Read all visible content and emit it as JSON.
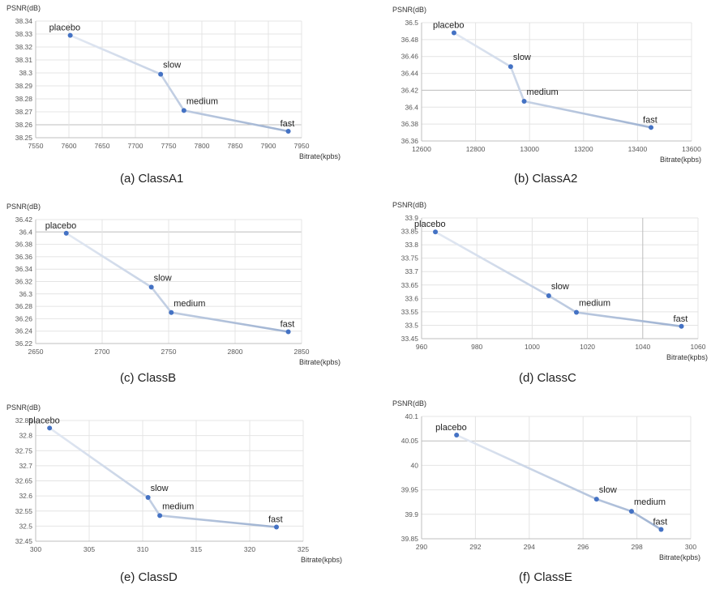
{
  "chart_data": [
    {
      "type": "line",
      "caption": "(a)  ClassA1",
      "ylabel": "PSNR(dB)",
      "xlabel": "Bitrate(kpbs)",
      "xlim": [
        7550,
        7950
      ],
      "xticks": [
        "7550",
        "7600",
        "7650",
        "7700",
        "7750",
        "7800",
        "7850",
        "7900",
        "7950"
      ],
      "ylim": [
        38.25,
        38.34
      ],
      "yticks": [
        "38.25",
        "38.26",
        "38.27",
        "38.28",
        "38.29",
        "38.3",
        "38.31",
        "38.32",
        "38.33",
        "38.34"
      ],
      "ydark": 38.26,
      "xdark": null,
      "points": [
        {
          "label": "placebo",
          "x": 7602,
          "y": 38.329
        },
        {
          "label": "slow",
          "x": 7738,
          "y": 38.299
        },
        {
          "label": "medium",
          "x": 7773,
          "y": 38.271
        },
        {
          "label": "fast",
          "x": 7930,
          "y": 38.255
        }
      ]
    },
    {
      "type": "line",
      "caption": "(b)  ClassA2",
      "ylabel": "PSNR(dB)",
      "xlabel": "Bitrate(kpbs)",
      "xlim": [
        12600,
        13600
      ],
      "xticks": [
        "12600",
        "12800",
        "13000",
        "13200",
        "13400",
        "13600"
      ],
      "ylim": [
        36.36,
        36.5
      ],
      "yticks": [
        "36.36",
        "36.38",
        "36.4",
        "36.42",
        "36.44",
        "36.46",
        "36.48",
        "36.5"
      ],
      "ydark": 36.42,
      "xdark": null,
      "points": [
        {
          "label": "placebo",
          "x": 12720,
          "y": 36.488
        },
        {
          "label": "slow",
          "x": 12930,
          "y": 36.448
        },
        {
          "label": "medium",
          "x": 12980,
          "y": 36.407
        },
        {
          "label": "fast",
          "x": 13450,
          "y": 36.376
        }
      ]
    },
    {
      "type": "line",
      "caption": "(c)  ClassB",
      "ylabel": "PSNR(dB)",
      "xlabel": "Bitrate(kpbs)",
      "xlim": [
        2650,
        2850
      ],
      "xticks": [
        "2650",
        "2700",
        "2750",
        "2800",
        "2850"
      ],
      "ylim": [
        36.22,
        36.42
      ],
      "yticks": [
        "36.22",
        "36.24",
        "36.26",
        "36.28",
        "36.3",
        "36.32",
        "36.34",
        "36.36",
        "36.38",
        "36.4",
        "36.42"
      ],
      "ydark": 36.4,
      "xdark": null,
      "points": [
        {
          "label": "placebo",
          "x": 2673,
          "y": 36.398
        },
        {
          "label": "slow",
          "x": 2737,
          "y": 36.311
        },
        {
          "label": "medium",
          "x": 2752,
          "y": 36.27
        },
        {
          "label": "fast",
          "x": 2840,
          "y": 36.239
        }
      ]
    },
    {
      "type": "line",
      "caption": "(d)  ClassC",
      "ylabel": "PSNR(dB)",
      "xlabel": "Bitrate(kpbs)",
      "xlim": [
        960,
        1060
      ],
      "xticks": [
        "960",
        "980",
        "1000",
        "1020",
        "1040",
        "1060"
      ],
      "ylim": [
        33.45,
        33.9
      ],
      "yticks": [
        "33.45",
        "33.5",
        "33.55",
        "33.6",
        "33.65",
        "33.7",
        "33.75",
        "33.8",
        "33.85",
        "33.9"
      ],
      "ydark": null,
      "xdark": 1040,
      "points": [
        {
          "label": "placebo",
          "x": 965,
          "y": 33.848
        },
        {
          "label": "slow",
          "x": 1006,
          "y": 33.61
        },
        {
          "label": "medium",
          "x": 1016,
          "y": 33.548
        },
        {
          "label": "fast",
          "x": 1054,
          "y": 33.496
        }
      ]
    },
    {
      "type": "line",
      "caption": "(e)  ClassD",
      "ylabel": "PSNR(dB)",
      "xlabel": "Bitrate(kpbs)",
      "xlim": [
        300,
        325
      ],
      "xticks": [
        "300",
        "305",
        "310",
        "315",
        "320",
        "325"
      ],
      "ylim": [
        32.45,
        32.85
      ],
      "yticks": [
        "32.45",
        "32.5",
        "32.55",
        "32.6",
        "32.65",
        "32.7",
        "32.75",
        "32.8",
        "32.85"
      ],
      "ydark": null,
      "xdark": null,
      "points": [
        {
          "label": "placebo",
          "x": 301.3,
          "y": 32.825
        },
        {
          "label": "slow",
          "x": 310.5,
          "y": 32.595
        },
        {
          "label": "medium",
          "x": 311.6,
          "y": 32.535
        },
        {
          "label": "fast",
          "x": 322.5,
          "y": 32.497
        }
      ]
    },
    {
      "type": "line",
      "caption": "(f)  ClassE",
      "ylabel": "PSNR(dB)",
      "xlabel": "Bitrate(kpbs)",
      "xlim": [
        290,
        300
      ],
      "xticks": [
        "290",
        "292",
        "294",
        "296",
        "298",
        "300"
      ],
      "ylim": [
        39.85,
        40.1
      ],
      "yticks": [
        "39.85",
        "39.9",
        "39.95",
        "40",
        "40.05",
        "40.1"
      ],
      "ydark": 40.05,
      "xdark": null,
      "points": [
        {
          "label": "placebo",
          "x": 291.3,
          "y": 40.062
        },
        {
          "label": "slow",
          "x": 296.5,
          "y": 39.931
        },
        {
          "label": "medium",
          "x": 297.8,
          "y": 39.906
        },
        {
          "label": "fast",
          "x": 298.9,
          "y": 39.869
        }
      ]
    }
  ]
}
